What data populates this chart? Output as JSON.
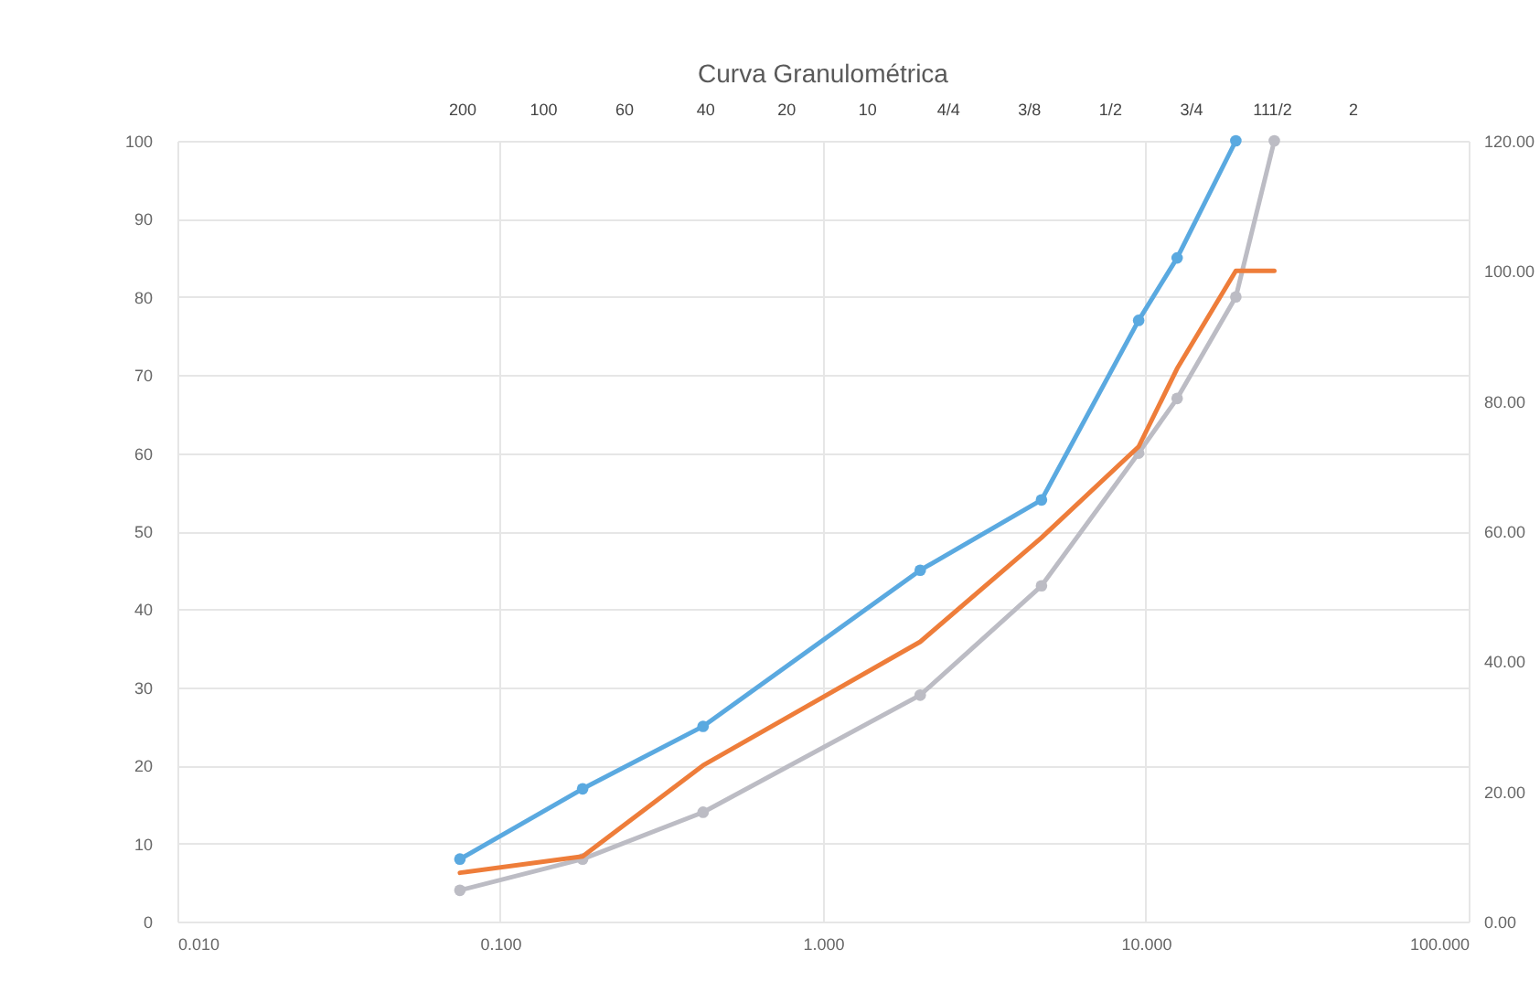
{
  "chart_data": {
    "type": "line",
    "title": "Curva Granulométrica",
    "log": "x",
    "grid": true,
    "xlim": [
      0.01,
      100
    ],
    "xticks": [
      {
        "value": 0.01,
        "label": "0.010"
      },
      {
        "value": 0.1,
        "label": "0.100"
      },
      {
        "value": 1,
        "label": "1.000"
      },
      {
        "value": 10,
        "label": "10.000"
      },
      {
        "value": 100,
        "label": "100.000"
      }
    ],
    "annotations": [
      "200",
      "100",
      "60",
      "40",
      "20",
      "10",
      "4/4",
      "3/8",
      "1/2",
      "3/4",
      "111/2",
      "2"
    ],
    "ylim": [
      0,
      100
    ],
    "yticks": [
      0,
      10,
      20,
      30,
      40,
      50,
      60,
      70,
      80,
      90,
      100
    ],
    "y2lim": [
      0,
      120
    ],
    "y2ticks": [
      {
        "value": 0,
        "label": "0.00"
      },
      {
        "value": 20,
        "label": "20.00"
      },
      {
        "value": 40,
        "label": "40.00"
      },
      {
        "value": 60,
        "label": "60.00"
      },
      {
        "value": 80,
        "label": "80.00"
      },
      {
        "value": 100,
        "label": "100.00"
      },
      {
        "value": 120,
        "label": "120.00"
      }
    ],
    "series": [
      {
        "color": "#5aa9e0",
        "marker": "circle",
        "x": [
          0.075,
          0.18,
          0.425,
          2.0,
          4.75,
          9.5,
          12.5,
          19.0
        ],
        "values": [
          8,
          17,
          25,
          45,
          54,
          77,
          85,
          100
        ]
      },
      {
        "color": "#ee7d3a",
        "marker": "none",
        "axis": "y2",
        "x": [
          0.075,
          0.18,
          0.425,
          2.0,
          4.75,
          9.5,
          12.5,
          19.0,
          25.0
        ],
        "values": [
          7.5,
          10,
          24,
          43,
          59,
          73,
          85,
          100,
          100
        ]
      },
      {
        "color": "#bcbcc4",
        "marker": "circle",
        "x": [
          0.075,
          0.18,
          0.425,
          2.0,
          4.75,
          9.5,
          12.5,
          19.0,
          25.0
        ],
        "values": [
          4,
          8,
          14,
          29,
          43,
          60,
          67,
          80,
          100
        ]
      }
    ]
  }
}
